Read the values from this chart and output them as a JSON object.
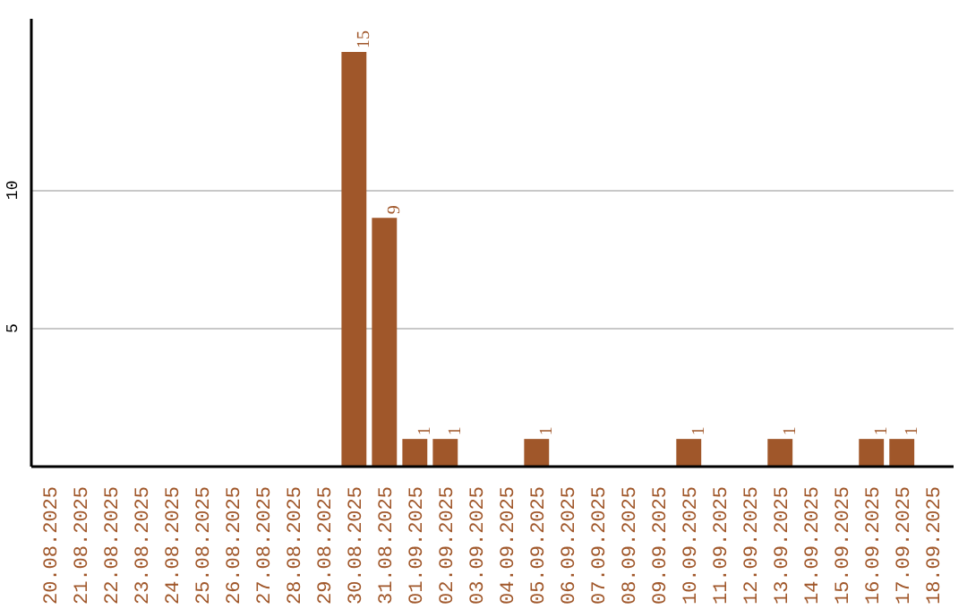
{
  "chart_data": {
    "type": "bar",
    "categories": [
      "20.08.2025",
      "21.08.2025",
      "22.08.2025",
      "23.08.2025",
      "24.08.2025",
      "25.08.2025",
      "26.08.2025",
      "27.08.2025",
      "28.08.2025",
      "29.08.2025",
      "30.08.2025",
      "31.08.2025",
      "01.09.2025",
      "02.09.2025",
      "03.09.2025",
      "04.09.2025",
      "05.09.2025",
      "06.09.2025",
      "07.09.2025",
      "08.09.2025",
      "09.09.2025",
      "10.09.2025",
      "11.09.2025",
      "12.09.2025",
      "13.09.2025",
      "14.09.2025",
      "15.09.2025",
      "16.09.2025",
      "17.09.2025",
      "18.09.2025"
    ],
    "values": [
      0,
      0,
      0,
      0,
      0,
      0,
      0,
      0,
      0,
      0,
      15,
      9,
      1,
      1,
      0,
      0,
      1,
      0,
      0,
      0,
      0,
      1,
      0,
      0,
      1,
      0,
      0,
      1,
      1,
      0
    ],
    "value_labels": [
      null,
      null,
      null,
      null,
      null,
      null,
      null,
      null,
      null,
      null,
      "15",
      "9",
      "1",
      "1",
      null,
      null,
      "1",
      null,
      null,
      null,
      null,
      "1",
      null,
      null,
      "1",
      null,
      null,
      "1",
      "1",
      null
    ],
    "color": "#a0572a",
    "ylim": [
      0,
      16.2
    ],
    "yticks": [
      5,
      10
    ],
    "grid": "y"
  }
}
